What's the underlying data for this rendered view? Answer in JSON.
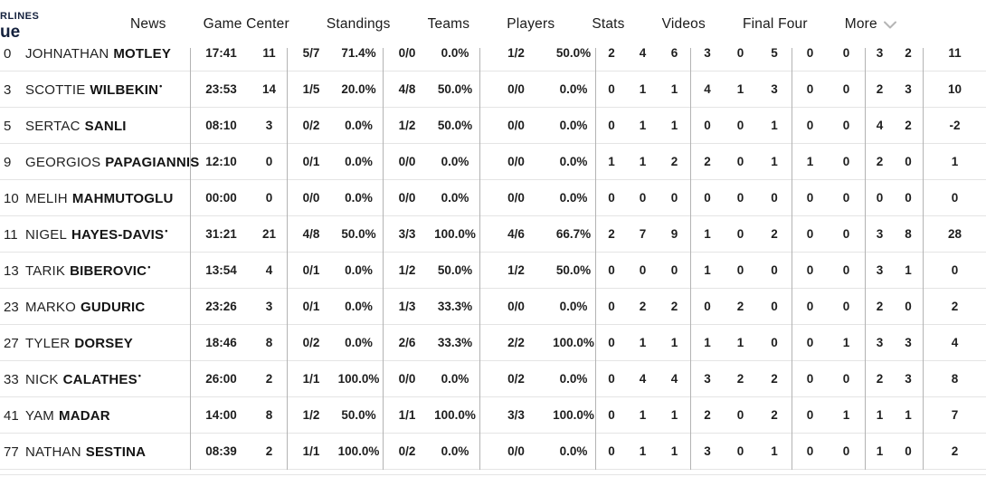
{
  "brand": {
    "logo_line1": "RLINES",
    "logo_line2": "ue",
    "color": "#14213d"
  },
  "nav": {
    "items": [
      {
        "label": "News"
      },
      {
        "label": "Game Center"
      },
      {
        "label": "Standings"
      },
      {
        "label": "Teams"
      },
      {
        "label": "Players"
      },
      {
        "label": "Stats"
      },
      {
        "label": "Videos"
      },
      {
        "label": "Final Four"
      },
      {
        "label": "More",
        "has_chevron": true
      }
    ],
    "chevron_color": "#b5b5b5"
  },
  "stats_table": {
    "starter_mark": "•",
    "rows": [
      {
        "number": "0",
        "first": "JOHNATHAN",
        "last": "MOTLEY",
        "starter": false,
        "partially_visible": true,
        "stats": [
          "17:41",
          "11",
          "5/7",
          "71.4%",
          "0/0",
          "0.0%",
          "1/2",
          "50.0%",
          "2",
          "4",
          "6",
          "3",
          "0",
          "5",
          "0",
          "0",
          "3",
          "2",
          "11"
        ]
      },
      {
        "number": "3",
        "first": "SCOTTIE",
        "last": "WILBEKIN",
        "starter": true,
        "stats": [
          "23:53",
          "14",
          "1/5",
          "20.0%",
          "4/8",
          "50.0%",
          "0/0",
          "0.0%",
          "0",
          "1",
          "1",
          "4",
          "1",
          "3",
          "0",
          "0",
          "2",
          "3",
          "10"
        ]
      },
      {
        "number": "5",
        "first": "SERTAC",
        "last": "SANLI",
        "starter": false,
        "stats": [
          "08:10",
          "3",
          "0/2",
          "0.0%",
          "1/2",
          "50.0%",
          "0/0",
          "0.0%",
          "0",
          "1",
          "1",
          "0",
          "0",
          "1",
          "0",
          "0",
          "4",
          "2",
          "-2"
        ]
      },
      {
        "number": "9",
        "first": "GEORGIOS",
        "last": "PAPAGIANNIS",
        "starter": false,
        "stats": [
          "12:10",
          "0",
          "0/1",
          "0.0%",
          "0/0",
          "0.0%",
          "0/0",
          "0.0%",
          "1",
          "1",
          "2",
          "2",
          "0",
          "1",
          "1",
          "0",
          "2",
          "0",
          "1"
        ]
      },
      {
        "number": "10",
        "first": "MELIH",
        "last": "MAHMUTOGLU",
        "starter": false,
        "stats": [
          "00:00",
          "0",
          "0/0",
          "0.0%",
          "0/0",
          "0.0%",
          "0/0",
          "0.0%",
          "0",
          "0",
          "0",
          "0",
          "0",
          "0",
          "0",
          "0",
          "0",
          "0",
          "0"
        ]
      },
      {
        "number": "11",
        "first": "NIGEL",
        "last": "HAYES-DAVIS",
        "starter": true,
        "stats": [
          "31:21",
          "21",
          "4/8",
          "50.0%",
          "3/3",
          "100.0%",
          "4/6",
          "66.7%",
          "2",
          "7",
          "9",
          "1",
          "0",
          "2",
          "0",
          "0",
          "3",
          "8",
          "28"
        ]
      },
      {
        "number": "13",
        "first": "TARIK",
        "last": "BIBEROVIC",
        "starter": true,
        "stats": [
          "13:54",
          "4",
          "0/1",
          "0.0%",
          "1/2",
          "50.0%",
          "1/2",
          "50.0%",
          "0",
          "0",
          "0",
          "1",
          "0",
          "0",
          "0",
          "0",
          "3",
          "1",
          "0"
        ]
      },
      {
        "number": "23",
        "first": "MARKO",
        "last": "GUDURIC",
        "starter": false,
        "stats": [
          "23:26",
          "3",
          "0/1",
          "0.0%",
          "1/3",
          "33.3%",
          "0/0",
          "0.0%",
          "0",
          "2",
          "2",
          "0",
          "2",
          "0",
          "0",
          "0",
          "2",
          "0",
          "2"
        ]
      },
      {
        "number": "27",
        "first": "TYLER",
        "last": "DORSEY",
        "starter": false,
        "stats": [
          "18:46",
          "8",
          "0/2",
          "0.0%",
          "2/6",
          "33.3%",
          "2/2",
          "100.0%",
          "0",
          "1",
          "1",
          "1",
          "1",
          "0",
          "0",
          "1",
          "3",
          "3",
          "4"
        ]
      },
      {
        "number": "33",
        "first": "NICK",
        "last": "CALATHES",
        "starter": true,
        "stats": [
          "26:00",
          "2",
          "1/1",
          "100.0%",
          "0/0",
          "0.0%",
          "0/2",
          "0.0%",
          "0",
          "4",
          "4",
          "3",
          "2",
          "2",
          "0",
          "0",
          "2",
          "3",
          "8"
        ]
      },
      {
        "number": "41",
        "first": "YAM",
        "last": "MADAR",
        "starter": false,
        "stats": [
          "14:00",
          "8",
          "1/2",
          "50.0%",
          "1/1",
          "100.0%",
          "3/3",
          "100.0%",
          "0",
          "1",
          "1",
          "2",
          "0",
          "2",
          "0",
          "1",
          "1",
          "1",
          "7"
        ]
      },
      {
        "number": "77",
        "first": "NATHAN",
        "last": "SESTINA",
        "starter": false,
        "stats": [
          "08:39",
          "2",
          "1/1",
          "100.0%",
          "0/2",
          "0.0%",
          "0/0",
          "0.0%",
          "0",
          "1",
          "1",
          "3",
          "0",
          "1",
          "0",
          "0",
          "1",
          "0",
          "2"
        ]
      }
    ]
  }
}
